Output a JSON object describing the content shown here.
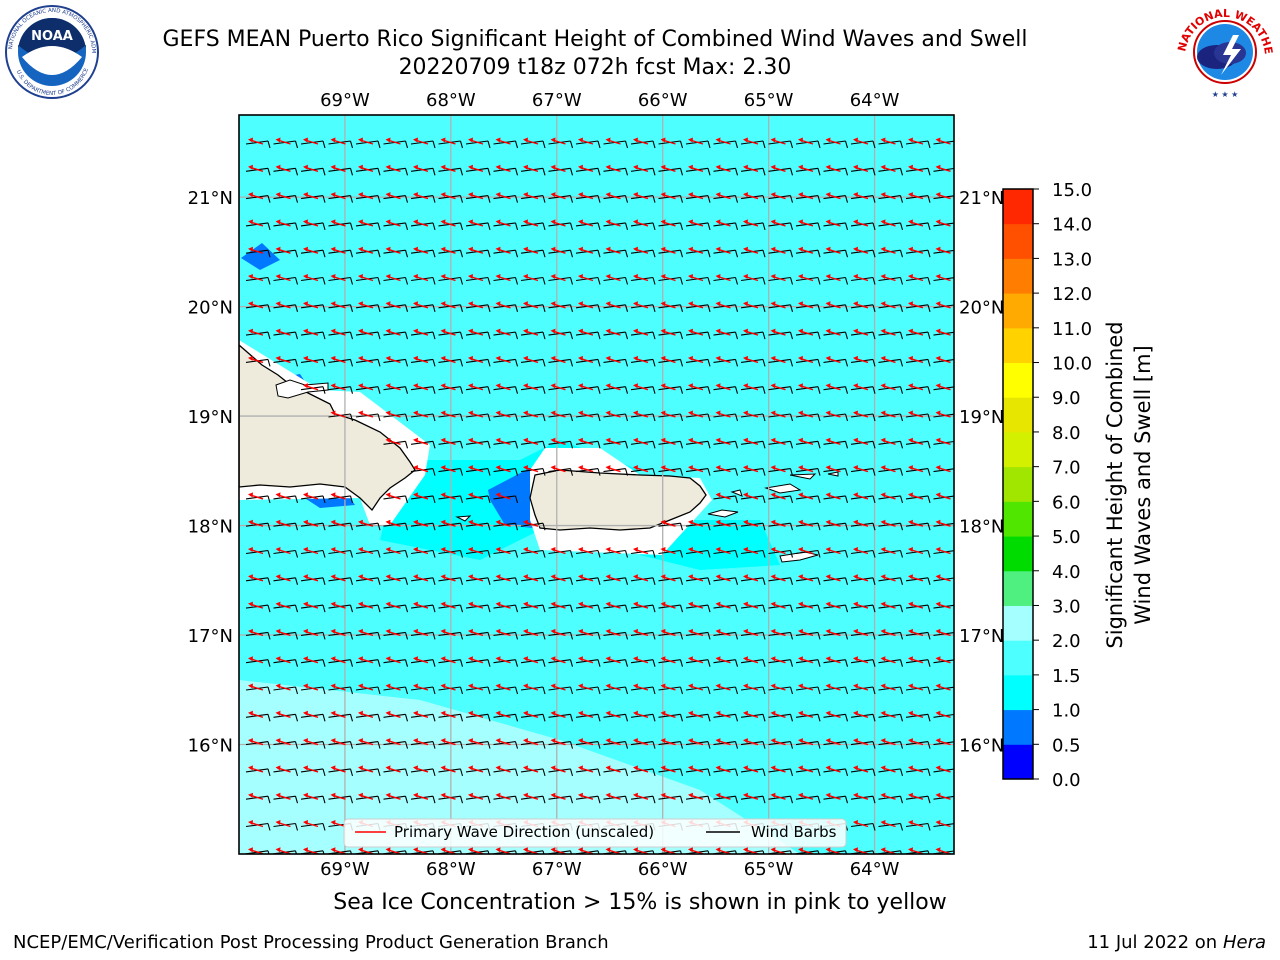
{
  "title": {
    "line1": "GEFS MEAN Puerto Rico Significant Height of Combined Wind Waves and Swell",
    "line2": "20220709 t18z 072h fcst   Max: 2.30"
  },
  "logos": {
    "left": {
      "icon": "noaa-logo-icon",
      "text": "NOAA",
      "ring_text": "NATIONAL OCEANIC AND ATMOSPHERIC ADMINISTRATION · U.S. DEPARTMENT OF COMMERCE"
    },
    "right": {
      "icon": "nws-logo-icon",
      "ring_text": "NATIONAL WEATHER SERVICE"
    }
  },
  "map": {
    "lon_ticks": [
      "69°W",
      "68°W",
      "67°W",
      "66°W",
      "65°W",
      "64°W"
    ],
    "lat_ticks": [
      "21°N",
      "20°N",
      "19°N",
      "18°N",
      "17°N",
      "16°N"
    ],
    "lon_range": [
      -70.0,
      -63.25
    ],
    "lat_range": [
      15.0,
      21.75
    ],
    "background_color": "#4dffff",
    "land_color": "#eeebdc",
    "wave_arrow_color": "#ff0000",
    "barb_color": "#000000",
    "legend": {
      "wave": "Primary Wave Direction (unscaled)",
      "barbs": "Wind Barbs"
    }
  },
  "colorbar": {
    "label": "Significant Height of Combined Wind Waves and Swell [m]",
    "label_line1": "Significant Height of Combined",
    "label_line2": "Wind Waves and Swell [m]",
    "ticks": [
      "0.0",
      "0.5",
      "1.0",
      "1.5",
      "2.0",
      "3.0",
      "4.0",
      "5.0",
      "6.0",
      "7.0",
      "8.0",
      "9.0",
      "10.0",
      "11.0",
      "12.0",
      "13.0",
      "14.0",
      "15.0"
    ],
    "colors": [
      "#0000ff",
      "#0078ff",
      "#00ffff",
      "#4dffff",
      "#a6ffff",
      "#50f080",
      "#00dc00",
      "#50e600",
      "#a0e600",
      "#d2f000",
      "#e6e600",
      "#ffff00",
      "#ffd200",
      "#ffaa00",
      "#ff7d00",
      "#ff5000",
      "#ff2800",
      "#ff0000"
    ]
  },
  "note": "Sea Ice Concentration > 15% is shown in pink to yellow",
  "footer": {
    "left": "NCEP/EMC/Verification Post Processing Product Generation Branch",
    "date": "11 Jul 2022 on",
    "machine": "Hera"
  }
}
